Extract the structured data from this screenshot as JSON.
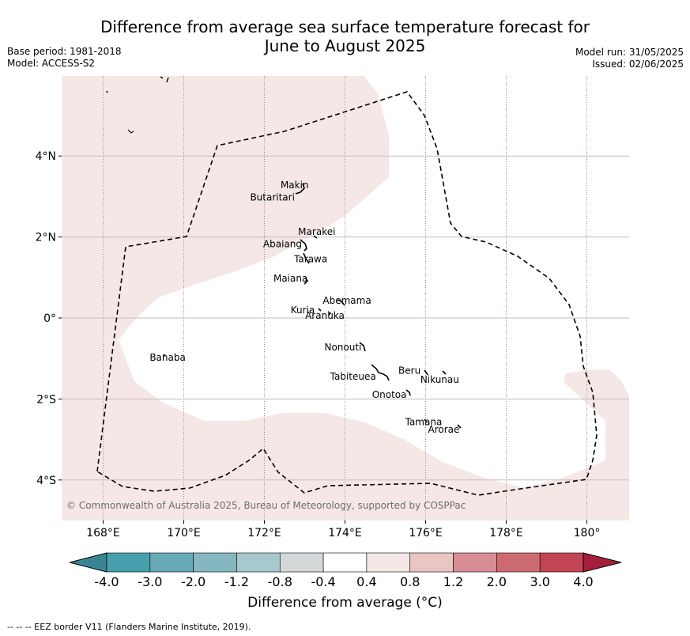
{
  "title_line1": "Difference from average sea surface temperature forecast for",
  "title_line2": "June to August 2025",
  "base_period": "Base period: 1981-2018",
  "model": "Model: ACCESS-S2",
  "model_run": "Model run: 31/05/2025",
  "issued": "Issued: 02/06/2025",
  "copyright": "© Commonwealth of Australia 2025, Bureau of Meteorology, supported by COSPPac",
  "footnote": "-- -- -- EEZ border V11 (Flanders Marine Institute, 2019).",
  "colorbar_label": "Difference from average (°C)",
  "x_ticks": [
    "168°E",
    "170°E",
    "172°E",
    "174°E",
    "176°E",
    "178°E",
    "180°"
  ],
  "y_ticks": [
    "4°N",
    "2°N",
    "0°",
    "2°S",
    "4°S"
  ],
  "islands": [
    {
      "name": "Makin",
      "lon": 172.75,
      "lat": 3.2
    },
    {
      "name": "Butaritari",
      "lon": 172.2,
      "lat": 2.9
    },
    {
      "name": "Marakei",
      "lon": 173.3,
      "lat": 2.05
    },
    {
      "name": "Abaiang",
      "lon": 172.45,
      "lat": 1.75
    },
    {
      "name": "Tarawa",
      "lon": 173.15,
      "lat": 1.38
    },
    {
      "name": "Maiana",
      "lon": 172.65,
      "lat": 0.9
    },
    {
      "name": "Abemama",
      "lon": 174.05,
      "lat": 0.35
    },
    {
      "name": "Kuria",
      "lon": 172.95,
      "lat": 0.12
    },
    {
      "name": "Aranuka",
      "lon": 173.5,
      "lat": -0.02
    },
    {
      "name": "Nonouti",
      "lon": 173.95,
      "lat": -0.8
    },
    {
      "name": "Banaba",
      "lon": 169.6,
      "lat": -1.05
    },
    {
      "name": "Beru",
      "lon": 175.6,
      "lat": -1.38
    },
    {
      "name": "Nikunau",
      "lon": 176.35,
      "lat": -1.6
    },
    {
      "name": "Tabiteuea",
      "lon": 174.2,
      "lat": -1.52
    },
    {
      "name": "Onotoa",
      "lon": 175.1,
      "lat": -1.97
    },
    {
      "name": "Tamana",
      "lon": 175.95,
      "lat": -2.65
    },
    {
      "name": "Arorae",
      "lon": 176.45,
      "lat": -2.83
    }
  ],
  "colorbar": {
    "ticks": [
      "-4.0",
      "-3.0",
      "-2.0",
      "-1.2",
      "-0.8",
      "-0.4",
      "0.4",
      "0.8",
      "1.2",
      "2.0",
      "3.0",
      "4.0"
    ],
    "colors": [
      "#3a8594",
      "#489fae",
      "#67abb8",
      "#85b7c0",
      "#a7c9cd",
      "#d5d8d8",
      "#ffffff",
      "#f5e7e6",
      "#e9c6c3",
      "#d88d94",
      "#cd6b72",
      "#c24553",
      "#a51e3c"
    ]
  },
  "colors": {
    "warm_fill": "#f5e7e6",
    "land": "#000000",
    "grid": "#c9b8bc",
    "eez": "#000000"
  },
  "map_data": {
    "lon_range": [
      167,
      181
    ],
    "lat_range": [
      -5,
      6
    ],
    "lon_ticks": [
      168,
      170,
      172,
      174,
      176,
      178,
      180
    ],
    "lat_ticks": [
      4,
      2,
      0,
      -2,
      -4
    ]
  }
}
